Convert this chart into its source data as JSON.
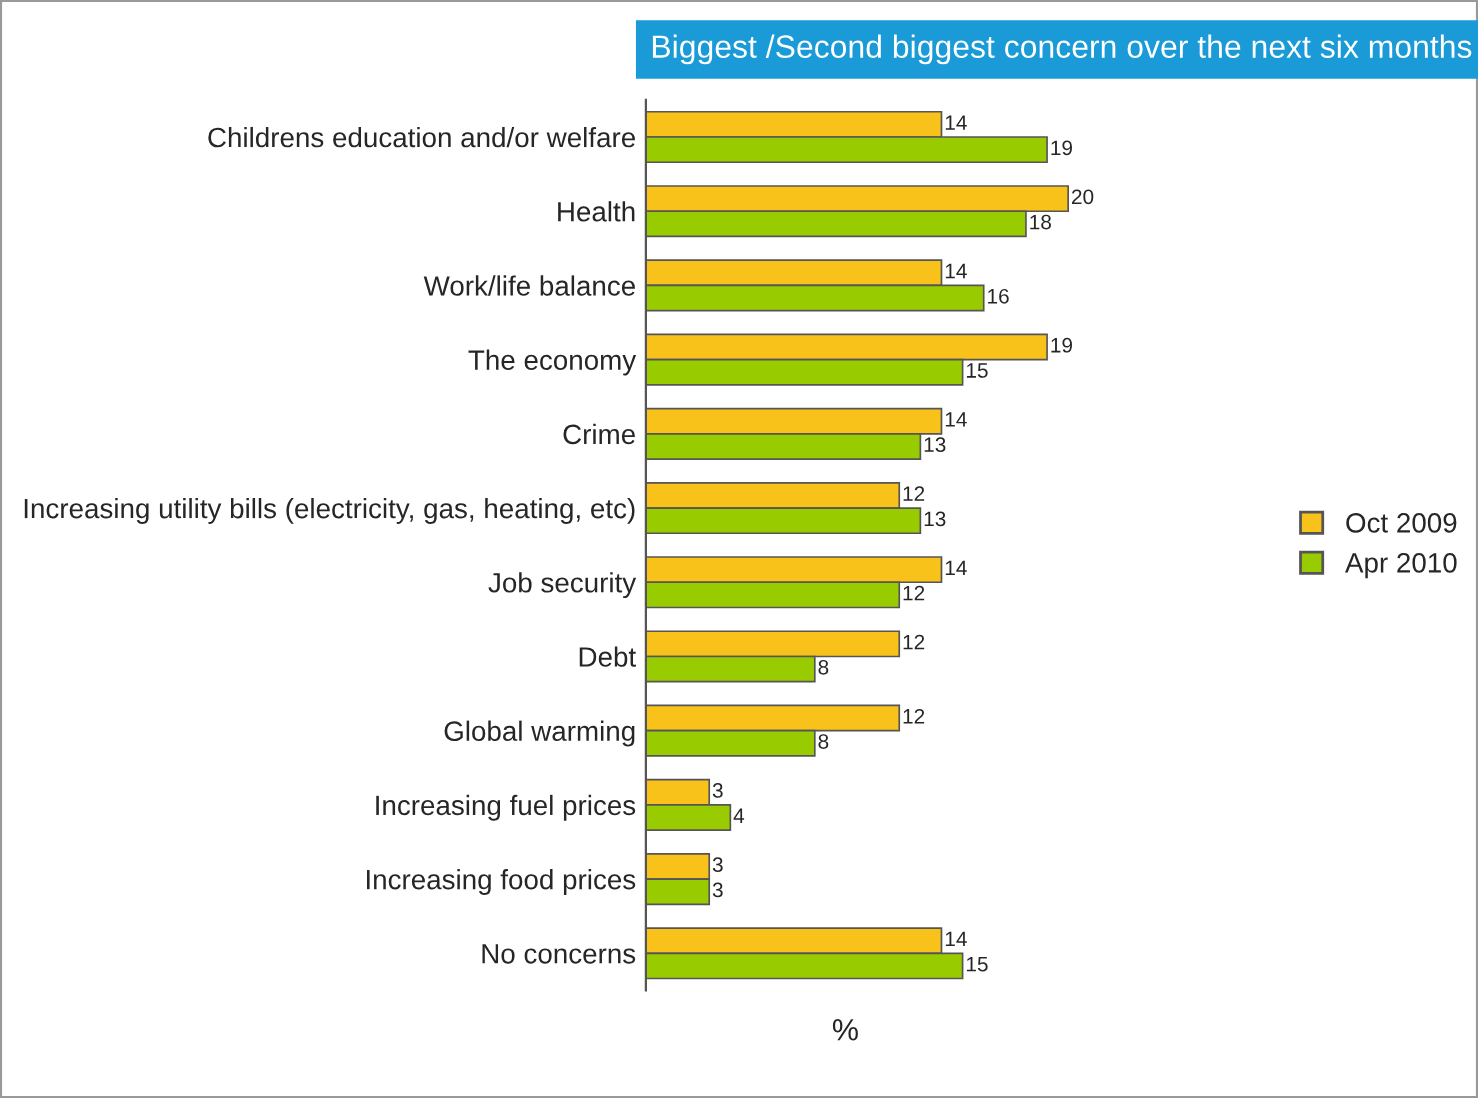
{
  "chart_data": {
    "type": "bar",
    "orientation": "horizontal",
    "title": "Biggest /Second biggest concern over the next six months",
    "xlabel": "%",
    "categories": [
      "Childrens education and/or welfare",
      "Health",
      "Work/life balance",
      "The economy",
      "Crime",
      "Increasing utility bills (electricity, gas, heating, etc)",
      "Job security",
      "Debt",
      "Global warming",
      "Increasing fuel prices",
      "Increasing food prices",
      "No concerns"
    ],
    "series": [
      {
        "name": "Oct 2009",
        "color": "#f9c21b",
        "values": [
          14,
          20,
          14,
          19,
          14,
          12,
          14,
          12,
          12,
          3,
          3,
          14
        ]
      },
      {
        "name": "Apr 2010",
        "color": "#99cc00",
        "values": [
          19,
          18,
          16,
          15,
          13,
          13,
          12,
          8,
          8,
          4,
          3,
          15
        ]
      }
    ],
    "tick_labels": "y",
    "data_labels": true,
    "legend": "right",
    "grid": false
  }
}
